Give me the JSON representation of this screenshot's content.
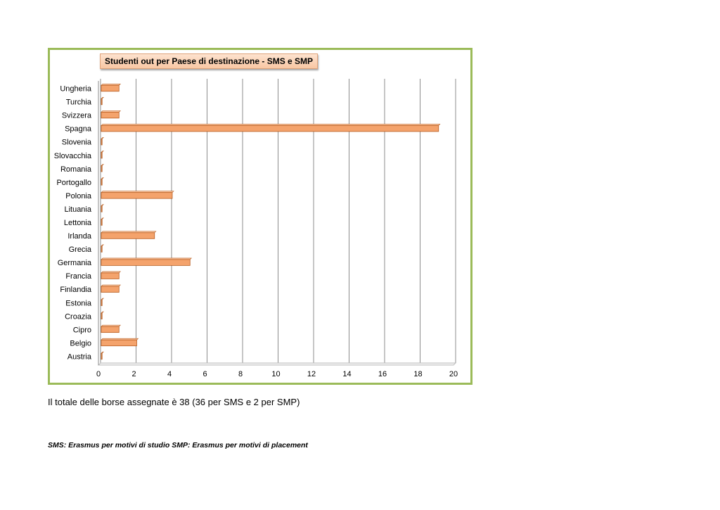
{
  "chart_data": {
    "type": "bar",
    "orientation": "horizontal",
    "title": "Studenti out per Paese di destinazione - SMS e SMP",
    "categories": [
      "Ungheria",
      "Turchia",
      "Svizzera",
      "Spagna",
      "Slovenia",
      "Slovacchia",
      "Romania",
      "Portogallo",
      "Polonia",
      "Lituania",
      "Lettonia",
      "Irlanda",
      "Grecia",
      "Germania",
      "Francia",
      "Finlandia",
      "Estonia",
      "Croazia",
      "Cipro",
      "Belgio",
      "Austria"
    ],
    "values": [
      1,
      0,
      1,
      19,
      0,
      0,
      0,
      0,
      4,
      0,
      0,
      3,
      0,
      5,
      1,
      1,
      0,
      0,
      1,
      2,
      0
    ],
    "xlim": [
      0,
      20
    ],
    "xticks": [
      0,
      2,
      4,
      6,
      8,
      10,
      12,
      14,
      16,
      18,
      20
    ],
    "grid": true,
    "colors": {
      "bar": "#f4a36c",
      "bar_edge": "#b85c1e",
      "frame": "#9bbb59"
    }
  },
  "note": "Il totale delle borse assegnate è 38 (36 per SMS e 2 per SMP)",
  "legend_note": "SMS: Erasmus per motivi di studio SMP: Erasmus per motivi di placement"
}
